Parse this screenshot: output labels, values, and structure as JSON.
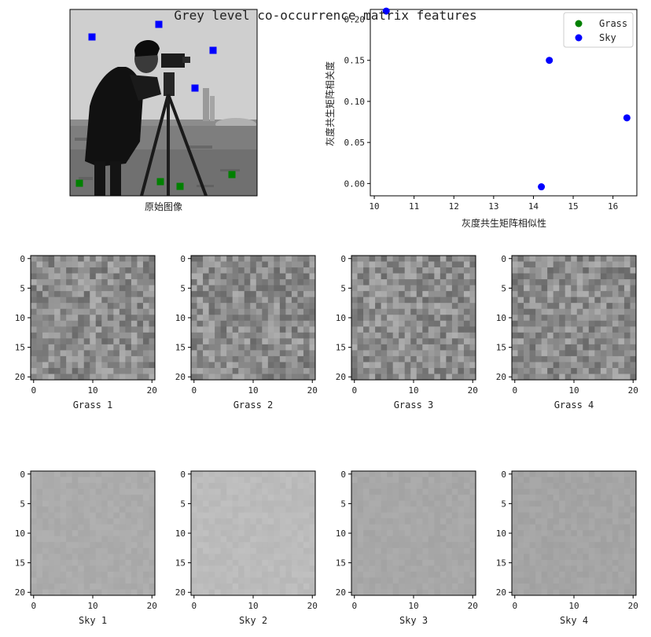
{
  "figure": {
    "suptitle": "Grey level co-occurrence matrix features",
    "image_label": "原始图像"
  },
  "chart_data": [
    {
      "type": "image",
      "name": "original-image",
      "xlabel": "原始图像",
      "subject": "camera-man",
      "markers": {
        "Grass": {
          "color": "#008000"
        },
        "Sky": {
          "color": "#0000ff"
        }
      }
    },
    {
      "type": "scatter",
      "name": "glcm-scatter",
      "xlabel": "灰度共生矩阵相似性",
      "ylabel": "灰度共生矩阵相关度",
      "xlim": [
        9.9,
        16.6
      ],
      "ylim": [
        -0.015,
        0.212
      ],
      "xticks": [
        10,
        11,
        12,
        13,
        14,
        15,
        16
      ],
      "yticks": [
        "0.00",
        "0.05",
        "0.10",
        "0.15",
        "0.20"
      ],
      "legend_location": "upper right",
      "series": [
        {
          "name": "Grass",
          "color": "#008000",
          "points": []
        },
        {
          "name": "Sky",
          "color": "#0000ff",
          "points": [
            [
              10.3,
              0.21
            ],
            [
              14.4,
              0.15
            ],
            [
              16.35,
              0.08
            ],
            [
              14.2,
              -0.004
            ]
          ]
        }
      ]
    },
    {
      "type": "heatmap",
      "name": "patch-grid",
      "colormap": "gray",
      "xticks": [
        "0",
        "10",
        "20"
      ],
      "yticks": [
        "0",
        "5",
        "10",
        "15",
        "20"
      ],
      "patches": [
        {
          "label": "Grass 1",
          "group": "Grass"
        },
        {
          "label": "Grass 2",
          "group": "Grass"
        },
        {
          "label": "Grass 3",
          "group": "Grass"
        },
        {
          "label": "Grass 4",
          "group": "Grass"
        },
        {
          "label": "Sky 1",
          "group": "Sky"
        },
        {
          "label": "Sky 2",
          "group": "Sky"
        },
        {
          "label": "Sky 3",
          "group": "Sky"
        },
        {
          "label": "Sky 4",
          "group": "Sky"
        }
      ]
    }
  ]
}
